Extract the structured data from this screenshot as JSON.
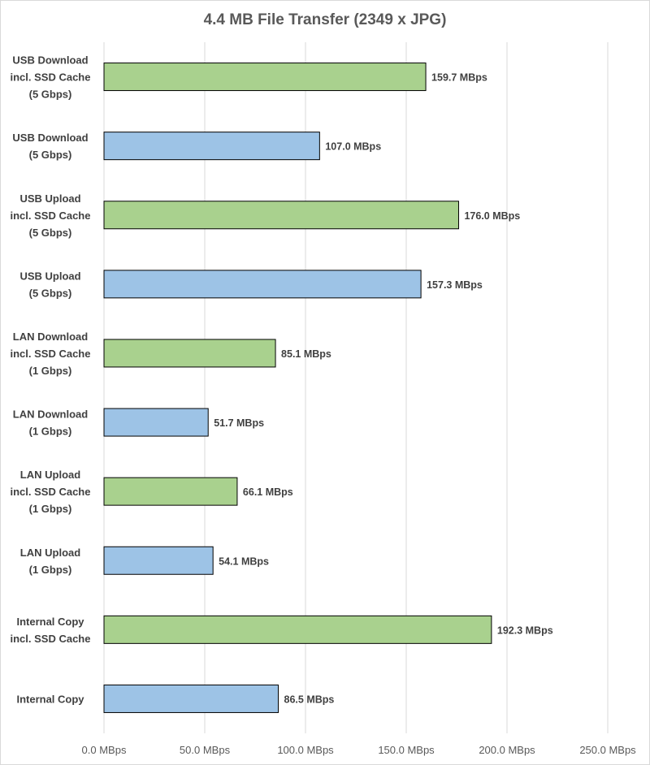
{
  "chart_data": {
    "type": "bar",
    "orientation": "horizontal",
    "title": "4.4 MB File Transfer (2349 x JPG)",
    "xlabel": "",
    "ylabel": "",
    "xlim": [
      0,
      250
    ],
    "x_ticks": [
      0,
      50,
      100,
      150,
      200,
      250
    ],
    "x_tick_labels": [
      "0.0 MBps",
      "50.0 MBps",
      "100.0 MBps",
      "150.0 MBps",
      "200.0 MBps",
      "250.0 MBps"
    ],
    "grid": "vertical",
    "legend": "none",
    "categories": [
      [
        "USB Download",
        "incl. SSD Cache",
        "(5 Gbps)"
      ],
      [
        "USB Download",
        "(5 Gbps)"
      ],
      [
        "USB Upload",
        "incl. SSD Cache",
        "(5 Gbps)"
      ],
      [
        "USB Upload",
        "(5 Gbps)"
      ],
      [
        "LAN Download",
        "incl. SSD Cache",
        "(1 Gbps)"
      ],
      [
        "LAN Download",
        "(1 Gbps)"
      ],
      [
        "LAN Upload",
        "incl. SSD Cache",
        "(1 Gbps)"
      ],
      [
        "LAN Upload",
        "(1 Gbps)"
      ],
      [
        "Internal Copy",
        "incl. SSD Cache"
      ],
      [
        "Internal Copy"
      ]
    ],
    "values": [
      159.7,
      107.0,
      176.0,
      157.3,
      85.1,
      51.7,
      66.1,
      54.1,
      192.3,
      86.5
    ],
    "data_labels": [
      "159.7 MBps",
      "107.0 MBps",
      "176.0 MBps",
      "157.3 MBps",
      "85.1 MBps",
      "51.7 MBps",
      "66.1 MBps",
      "54.1 MBps",
      "192.3 MBps",
      "86.5 MBps"
    ],
    "bar_colors": [
      "#a9d18e",
      "#9dc3e6",
      "#a9d18e",
      "#9dc3e6",
      "#a9d18e",
      "#9dc3e6",
      "#a9d18e",
      "#9dc3e6",
      "#a9d18e",
      "#9dc3e6"
    ]
  }
}
